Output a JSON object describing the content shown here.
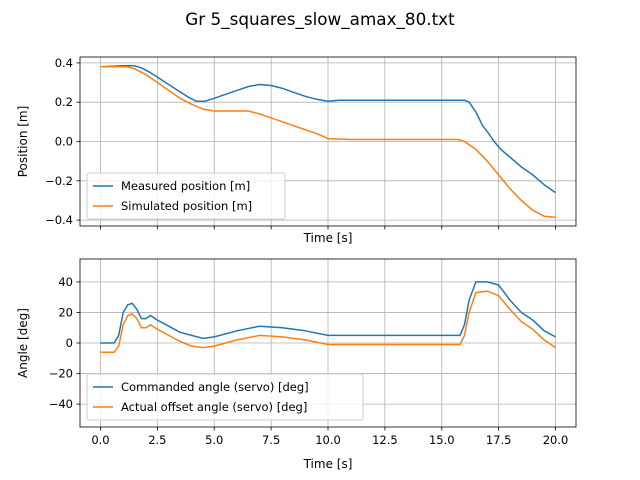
{
  "title": "Gr 5_squares_slow_amax_80.txt",
  "chart_data": [
    {
      "type": "line",
      "xlabel": "Time [s]",
      "ylabel": "Position [m]",
      "xlim": [
        -0.9,
        20.9
      ],
      "ylim": [
        -0.43,
        0.43
      ],
      "xticks": [
        0,
        2.5,
        5,
        7.5,
        10,
        12.5,
        15,
        17.5,
        20
      ],
      "xtick_labels_visible": false,
      "yticks": [
        -0.4,
        -0.2,
        0.0,
        0.2,
        0.4
      ],
      "ytick_labels": [
        "−0.4",
        "−0.2",
        "0.0",
        "0.2",
        "0.4"
      ],
      "grid": true,
      "legend_position": "lower-left",
      "series": [
        {
          "name": "Measured position [m]",
          "color": "#1f77b4",
          "x": [
            0,
            1.0,
            1.5,
            1.8,
            2.2,
            2.6,
            3.0,
            3.4,
            3.8,
            4.2,
            4.6,
            5.0,
            5.5,
            6.0,
            6.5,
            7.0,
            7.5,
            8.0,
            8.5,
            9.0,
            9.5,
            10.0,
            10.5,
            11.0,
            12.0,
            13.0,
            14.0,
            15.0,
            16.0,
            16.2,
            16.5,
            16.8,
            17.0,
            17.3,
            17.6,
            18.0,
            18.5,
            19.0,
            19.5,
            20.0
          ],
          "y": [
            0.38,
            0.385,
            0.385,
            0.375,
            0.35,
            0.32,
            0.29,
            0.26,
            0.23,
            0.205,
            0.205,
            0.22,
            0.24,
            0.26,
            0.28,
            0.29,
            0.285,
            0.27,
            0.25,
            0.23,
            0.215,
            0.205,
            0.21,
            0.21,
            0.21,
            0.21,
            0.21,
            0.21,
            0.21,
            0.2,
            0.15,
            0.08,
            0.05,
            0.0,
            -0.04,
            -0.08,
            -0.13,
            -0.17,
            -0.22,
            -0.26
          ]
        },
        {
          "name": "Simulated position [m]",
          "color": "#ff7f0e",
          "x": [
            0,
            1.2,
            1.5,
            2.0,
            2.5,
            3.0,
            3.5,
            4.0,
            4.5,
            5.0,
            6.0,
            6.5,
            7.0,
            7.5,
            8.0,
            8.5,
            9.0,
            9.5,
            10.0,
            11.0,
            12.0,
            13.0,
            14.0,
            15.0,
            15.7,
            16.0,
            16.5,
            17.0,
            17.5,
            18.0,
            18.5,
            19.0,
            19.5,
            20.0
          ],
          "y": [
            0.38,
            0.38,
            0.37,
            0.34,
            0.3,
            0.26,
            0.22,
            0.19,
            0.165,
            0.155,
            0.155,
            0.155,
            0.14,
            0.12,
            0.1,
            0.08,
            0.06,
            0.04,
            0.015,
            0.01,
            0.01,
            0.01,
            0.01,
            0.01,
            0.01,
            0.0,
            -0.04,
            -0.1,
            -0.17,
            -0.24,
            -0.3,
            -0.35,
            -0.38,
            -0.385
          ]
        }
      ]
    },
    {
      "type": "line",
      "xlabel": "Time [s]",
      "ylabel": "Angle [deg]",
      "xlim": [
        -0.9,
        20.9
      ],
      "ylim": [
        -55,
        55
      ],
      "xticks": [
        0,
        2.5,
        5,
        7.5,
        10,
        12.5,
        15,
        17.5,
        20
      ],
      "xtick_labels": [
        "0.0",
        "2.5",
        "5.0",
        "7.5",
        "10.0",
        "12.5",
        "15.0",
        "17.5",
        "20.0"
      ],
      "yticks": [
        -40,
        -20,
        0,
        20,
        40
      ],
      "ytick_labels": [
        "−40",
        "−20",
        "0",
        "20",
        "40"
      ],
      "grid": true,
      "legend_position": "lower-left",
      "series": [
        {
          "name": "Commanded angle (servo) [deg]",
          "color": "#1f77b4",
          "x": [
            0,
            0.6,
            0.8,
            1.0,
            1.2,
            1.4,
            1.6,
            1.8,
            2.0,
            2.2,
            2.5,
            3.0,
            3.5,
            4.0,
            4.5,
            5.0,
            6.0,
            7.0,
            8.0,
            9.0,
            10.0,
            11.0,
            12.0,
            13.0,
            14.0,
            15.0,
            15.5,
            15.8,
            16.0,
            16.2,
            16.5,
            17.0,
            17.5,
            18.0,
            18.5,
            19.0,
            19.5,
            20.0
          ],
          "y": [
            0,
            0,
            5,
            20,
            25,
            26,
            22,
            16,
            16,
            18,
            15,
            11,
            7,
            5,
            3,
            4,
            8,
            11,
            10,
            8,
            5,
            5,
            5,
            5,
            5,
            5,
            5,
            5,
            12,
            28,
            40,
            40,
            38,
            28,
            20,
            15,
            8,
            4
          ]
        },
        {
          "name": "Actual offset angle (servo) [deg]",
          "color": "#ff7f0e",
          "x": [
            0,
            0.6,
            0.8,
            1.0,
            1.2,
            1.4,
            1.6,
            1.8,
            2.0,
            2.2,
            2.5,
            3.0,
            3.5,
            4.0,
            4.5,
            5.0,
            6.0,
            7.0,
            8.0,
            9.0,
            10.0,
            11.0,
            12.0,
            13.0,
            14.0,
            15.0,
            15.5,
            15.8,
            16.0,
            16.2,
            16.5,
            17.0,
            17.5,
            18.0,
            18.5,
            19.0,
            19.5,
            20.0
          ],
          "y": [
            -6,
            -6,
            -2,
            12,
            18,
            19,
            16,
            10,
            10,
            12,
            9,
            5,
            1,
            -2,
            -3,
            -2,
            2,
            5,
            4,
            2,
            -1,
            -1,
            -1,
            -1,
            -1,
            -1,
            -1,
            -1,
            5,
            20,
            33,
            34,
            31,
            22,
            14,
            9,
            2,
            -3
          ]
        }
      ]
    }
  ]
}
